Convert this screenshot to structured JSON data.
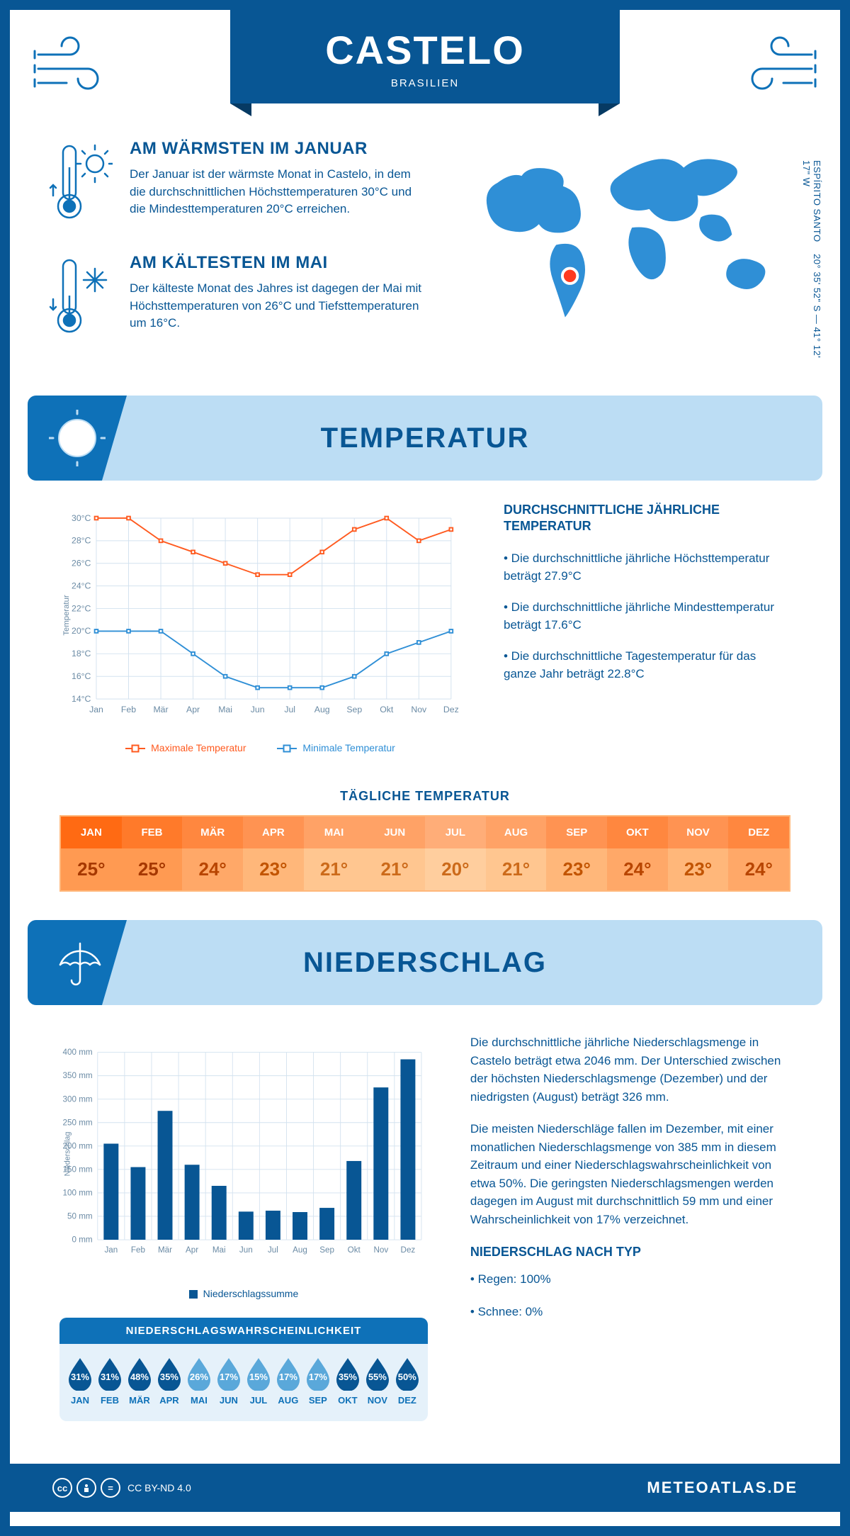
{
  "header": {
    "city": "CASTELO",
    "country": "BRASILIEN"
  },
  "coords": {
    "region": "ESPÍRITO SANTO",
    "latlon": "20° 35' 52\" S — 41° 12' 17\" W"
  },
  "facts": {
    "warm": {
      "title": "AM WÄRMSTEN IM JANUAR",
      "body": "Der Januar ist der wärmste Monat in Castelo, in dem die durchschnittlichen Höchsttemperaturen 30°C und die Mindesttemperaturen 20°C erreichen."
    },
    "cold": {
      "title": "AM KÄLTESTEN IM MAI",
      "body": "Der kälteste Monat des Jahres ist dagegen der Mai mit Höchsttemperaturen von 26°C und Tiefsttemperaturen um 16°C."
    }
  },
  "sections": {
    "temp": "TEMPERATUR",
    "precip": "NIEDERSCHLAG"
  },
  "months": [
    "Jan",
    "Feb",
    "Mär",
    "Apr",
    "Mai",
    "Jun",
    "Jul",
    "Aug",
    "Sep",
    "Okt",
    "Nov",
    "Dez"
  ],
  "months_upper": [
    "JAN",
    "FEB",
    "MÄR",
    "APR",
    "MAI",
    "JUN",
    "JUL",
    "AUG",
    "SEP",
    "OKT",
    "NOV",
    "DEZ"
  ],
  "temp_chart": {
    "type": "line",
    "ylabel": "Temperatur",
    "ymin": 14,
    "ymax": 30,
    "ytick_step": 2,
    "max_series": [
      30,
      30,
      28,
      27,
      26,
      25,
      25,
      27,
      29,
      30,
      28,
      29
    ],
    "min_series": [
      20,
      20,
      20,
      18,
      16,
      15,
      15,
      15,
      16,
      18,
      19,
      20
    ],
    "colors": {
      "max": "#ff5a1f",
      "min": "#2f8fd6",
      "grid": "#d3e2ef",
      "text": "#6b8ba5"
    },
    "line_width": 2,
    "marker_size": 5,
    "legend": {
      "max": "Maximale Temperatur",
      "min": "Minimale Temperatur"
    }
  },
  "temp_text": {
    "heading": "DURCHSCHNITTLICHE JÄHRLICHE TEMPERATUR",
    "p1": "• Die durchschnittliche jährliche Höchsttemperatur beträgt 27.9°C",
    "p2": "• Die durchschnittliche jährliche Mindesttemperatur beträgt 17.6°C",
    "p3": "• Die durchschnittliche Tagestemperatur für das ganze Jahr beträgt 22.8°C"
  },
  "daily_temp": {
    "title": "TÄGLICHE TEMPERATUR",
    "values": [
      "25°",
      "25°",
      "24°",
      "23°",
      "21°",
      "21°",
      "20°",
      "21°",
      "23°",
      "24°",
      "23°",
      "24°"
    ],
    "head_colors": [
      "#ff6a13",
      "#ff7a2a",
      "#ff873f",
      "#ff9352",
      "#ffa266",
      "#ffa266",
      "#ffad78",
      "#ffa266",
      "#ff9352",
      "#ff873f",
      "#ff9352",
      "#ff873f"
    ],
    "body_colors": [
      "#ff9a52",
      "#ff9a52",
      "#ffa868",
      "#ffb77a",
      "#ffc690",
      "#ffc690",
      "#ffce9e",
      "#ffc690",
      "#ffb77a",
      "#ffa868",
      "#ffb77a",
      "#ffa868"
    ],
    "body_text_colors": [
      "#a63800",
      "#a63800",
      "#b84500",
      "#c25400",
      "#cc6a1a",
      "#cc6a1a",
      "#cc6a1a",
      "#cc6a1a",
      "#c25400",
      "#b84500",
      "#c25400",
      "#b84500"
    ]
  },
  "precip_chart": {
    "type": "bar",
    "ylabel": "Niederschlag",
    "ymin": 0,
    "ymax": 400,
    "ytick_step": 50,
    "values": [
      205,
      155,
      275,
      160,
      115,
      60,
      62,
      59,
      68,
      168,
      325,
      385
    ],
    "bar_color": "#085694",
    "grid_color": "#d3e2ef",
    "bar_width": 0.55,
    "legend": "Niederschlagssumme"
  },
  "precip_text": {
    "p1": "Die durchschnittliche jährliche Niederschlagsmenge in Castelo beträgt etwa 2046 mm. Der Unterschied zwischen der höchsten Niederschlagsmenge (Dezember) und der niedrigsten (August) beträgt 326 mm.",
    "p2": "Die meisten Niederschläge fallen im Dezember, mit einer monatlichen Niederschlagsmenge von 385 mm in diesem Zeitraum und einer Niederschlagswahrscheinlichkeit von etwa 50%. Die geringsten Niederschlagsmengen werden dagegen im August mit durchschnittlich 59 mm und einer Wahrscheinlichkeit von 17% verzeichnet.",
    "type_heading": "NIEDERSCHLAG NACH TYP",
    "rain": "• Regen: 100%",
    "snow": "• Schnee: 0%"
  },
  "prob": {
    "title": "NIEDERSCHLAGSWAHRSCHEINLICHKEIT",
    "values": [
      31,
      31,
      48,
      35,
      26,
      17,
      15,
      17,
      17,
      35,
      55,
      50
    ],
    "color_dark": "#085694",
    "color_light": "#5aa8da",
    "threshold": 30
  },
  "footer": {
    "license": "CC BY-ND 4.0",
    "brand": "METEOATLAS.DE"
  }
}
